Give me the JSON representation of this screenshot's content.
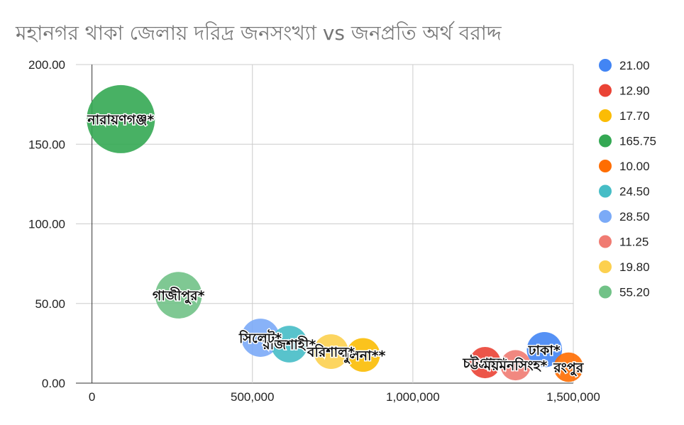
{
  "chart_data": {
    "type": "bubble",
    "title": "মহানগর থাকা জেলায় দরিদ্র জনসংখ্যা vs জনপ্রতি অর্থ  বরাদ্দ",
    "xlabel": "",
    "ylabel": "",
    "xlim": [
      -50000,
      1500000
    ],
    "ylim": [
      0,
      200
    ],
    "x_ticks": [
      "0",
      "500,000",
      "1,000,000",
      "1,500,000"
    ],
    "x_tick_values": [
      0,
      500000,
      1000000,
      1500000
    ],
    "y_ticks": [
      "0.00",
      "50.00",
      "100.00",
      "150.00",
      "200.00"
    ],
    "y_tick_values": [
      0,
      50,
      100,
      150,
      200
    ],
    "grid": true,
    "legend_position": "right",
    "points": [
      {
        "label": "ঢাকা*",
        "x": 1410000,
        "y": 21.0,
        "series": "21.00",
        "color": "#4285f4"
      },
      {
        "label": "চট্টগ্রাম*",
        "x": 1225000,
        "y": 12.9,
        "series": "12.90",
        "color": "#ea4335"
      },
      {
        "label": "খুলনা**",
        "x": 845000,
        "y": 17.7,
        "series": "17.70",
        "color": "#fbbc04"
      },
      {
        "label": "নারায়ণগঞ্জ*",
        "x": 90000,
        "y": 165.75,
        "series": "165.75",
        "color": "#34a853"
      },
      {
        "label": "রংপুর",
        "x": 1485000,
        "y": 10.0,
        "series": "10.00",
        "color": "#ff6d01"
      },
      {
        "label": "রাজশাহী*",
        "x": 615000,
        "y": 24.5,
        "series": "24.50",
        "color": "#46bdc6"
      },
      {
        "label": "সিলেট*",
        "x": 525000,
        "y": 28.5,
        "series": "28.50",
        "color": "#7baaf7"
      },
      {
        "label": "ময়মনসিংহ*",
        "x": 1320000,
        "y": 11.25,
        "series": "11.25",
        "color": "#f07b72"
      },
      {
        "label": "বরিশাল*",
        "x": 745000,
        "y": 19.8,
        "series": "19.80",
        "color": "#fcd04f"
      },
      {
        "label": "গাজীপুর*",
        "x": 270000,
        "y": 55.2,
        "series": "55.20",
        "color": "#71c287"
      }
    ],
    "legend": [
      {
        "name": "21.00",
        "color": "#4285f4"
      },
      {
        "name": "12.90",
        "color": "#ea4335"
      },
      {
        "name": "17.70",
        "color": "#fbbc04"
      },
      {
        "name": "165.75",
        "color": "#34a853"
      },
      {
        "name": "10.00",
        "color": "#ff6d01"
      },
      {
        "name": "24.50",
        "color": "#46bdc6"
      },
      {
        "name": "28.50",
        "color": "#7baaf7"
      },
      {
        "name": "11.25",
        "color": "#f07b72"
      },
      {
        "name": "19.80",
        "color": "#fcd04f"
      },
      {
        "name": "55.20",
        "color": "#71c287"
      }
    ]
  }
}
